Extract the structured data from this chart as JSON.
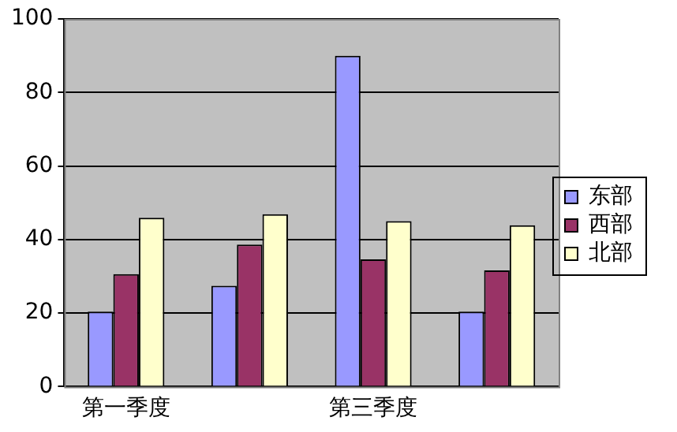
{
  "chart_data": {
    "type": "bar",
    "categories": [
      "第一季度",
      null,
      "第三季度",
      null
    ],
    "series": [
      {
        "name": "东部",
        "color": "#9999ff",
        "values": [
          20.4,
          27.4,
          90,
          20.4
        ]
      },
      {
        "name": "西部",
        "color": "#993366",
        "values": [
          30.6,
          38.6,
          34.6,
          31.6
        ]
      },
      {
        "name": "北部",
        "color": "#ffffcc",
        "values": [
          45.9,
          46.9,
          45,
          43.9
        ]
      }
    ],
    "ylim": [
      0,
      100
    ],
    "yticks": [
      0,
      20,
      40,
      60,
      80,
      100
    ],
    "grid": "y",
    "legend": "right"
  }
}
